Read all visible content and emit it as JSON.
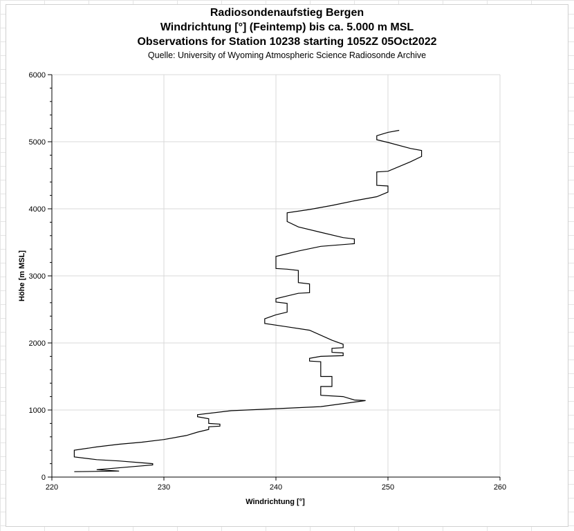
{
  "chart_data": {
    "type": "line",
    "title_lines": [
      "Radiosondenaufstieg Bergen",
      "Windrichtung [°] (Feintemp) bis ca. 5.000 m MSL",
      "Observations for Station 10238 starting 1052Z 05Oct2022"
    ],
    "subtitle": "Quelle: University of Wyoming Atmospheric Science Radiosonde Archive",
    "xlabel": "Windrichtung [°]",
    "ylabel": "Höhe [m MSL]",
    "xlim": [
      220,
      260
    ],
    "ylim": [
      0,
      6000
    ],
    "x_ticks": [
      220,
      230,
      240,
      250,
      260
    ],
    "x_tick_labels": [
      "220",
      "230",
      "240",
      "250",
      "260"
    ],
    "y_ticks": [
      0,
      1000,
      2000,
      3000,
      4000,
      5000,
      6000
    ],
    "y_tick_labels": [
      "0",
      "1000",
      "2000",
      "3000",
      "4000",
      "5000",
      "6000"
    ],
    "grid": true,
    "legend": "none",
    "line_color": "#000000",
    "series": [
      {
        "x": [
          222,
          226,
          224,
          229,
          229,
          226,
          224,
          222,
          222,
          224,
          226,
          228,
          230,
          232,
          233,
          234,
          234,
          235,
          235,
          234,
          234,
          233,
          233,
          236,
          240,
          244,
          248,
          247,
          246,
          244,
          244,
          245,
          245,
          244,
          244,
          244,
          243,
          243,
          244,
          246,
          246,
          245,
          245,
          246,
          246,
          245,
          243,
          241,
          239,
          239,
          240,
          241,
          241,
          240,
          240,
          241,
          242,
          243,
          243,
          242,
          242,
          241,
          240,
          240,
          242,
          244,
          247,
          247,
          246,
          244,
          242,
          241,
          241,
          243,
          245,
          247,
          249,
          250,
          250,
          249,
          249,
          250,
          252,
          253,
          253,
          252,
          250,
          249,
          249,
          250,
          251
        ],
        "y": [
          80,
          90,
          110,
          180,
          200,
          240,
          260,
          300,
          400,
          450,
          490,
          520,
          560,
          620,
          670,
          710,
          750,
          760,
          790,
          800,
          870,
          900,
          930,
          990,
          1020,
          1050,
          1140,
          1150,
          1200,
          1220,
          1350,
          1350,
          1500,
          1500,
          1650,
          1720,
          1730,
          1770,
          1800,
          1810,
          1850,
          1860,
          1920,
          1930,
          1980,
          2040,
          2190,
          2240,
          2290,
          2360,
          2420,
          2460,
          2590,
          2610,
          2660,
          2700,
          2740,
          2750,
          2880,
          2900,
          3080,
          3100,
          3110,
          3290,
          3370,
          3440,
          3480,
          3550,
          3570,
          3650,
          3730,
          3810,
          3940,
          3990,
          4050,
          4120,
          4180,
          4250,
          4340,
          4350,
          4550,
          4560,
          4700,
          4780,
          4870,
          4900,
          4990,
          5030,
          5090,
          5140,
          5170
        ]
      }
    ]
  }
}
